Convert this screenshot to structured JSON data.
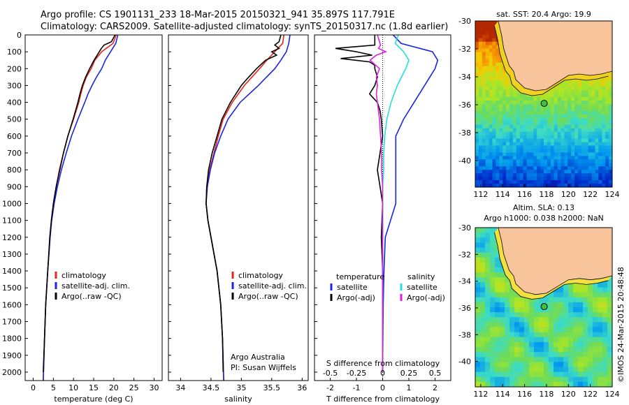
{
  "header": {
    "title_line1": "Argo profile: CS 1901131_233 18-Mar-2015 20150321_941 35.897S 117.791E",
    "title_line2": "Climatology: CARS2009. Satellite-adjusted climatology: synTS_20150317.nc (1.8d earlier)"
  },
  "colors": {
    "climatology": "#e8231a",
    "satellite": "#1a22e8",
    "argo": "#000000",
    "salinity_satellite": "#20e0e0",
    "salinity_argo": "#e020e0",
    "land": "#f7c49b"
  },
  "depth_axis": {
    "min": 0,
    "max": 2050,
    "ticks": [
      "0",
      "100",
      "200",
      "300",
      "400",
      "500",
      "600",
      "700",
      "800",
      "900",
      "1000",
      "1100",
      "1200",
      "1300",
      "1400",
      "1500",
      "1600",
      "1700",
      "1800",
      "1900",
      "2000"
    ]
  },
  "chart_data": [
    {
      "type": "line",
      "name": "temperature-profile",
      "xlabel": "temperature (deg C)",
      "xlim": [
        -2,
        32
      ],
      "ylim": [
        0,
        2050
      ],
      "xticks": [
        "0",
        "5",
        "10",
        "15",
        "20",
        "25",
        "30"
      ],
      "legend": {
        "placement": "lower-left",
        "entries": [
          "climatology",
          "satellite-adj. clim.",
          "Argo(..raw -QC)"
        ]
      },
      "series": [
        {
          "name": "climatology",
          "depth": [
            0,
            50,
            100,
            150,
            200,
            250,
            300,
            350,
            400,
            500,
            600,
            700,
            800,
            900,
            1000,
            1100,
            1200,
            1400,
            1600,
            1800,
            2050
          ],
          "values": [
            20.6,
            19.8,
            17.0,
            15.3,
            14.4,
            13.2,
            12.4,
            11.8,
            11.3,
            10.0,
            8.6,
            7.5,
            6.5,
            5.7,
            5.0,
            4.5,
            4.2,
            3.6,
            3.1,
            2.8,
            2.5
          ]
        },
        {
          "name": "satellite-adj. clim.",
          "depth": [
            0,
            50,
            100,
            150,
            200,
            250,
            300,
            350,
            400,
            500,
            600,
            700,
            800,
            900,
            1000,
            1100,
            1200,
            1400,
            1600,
            1800,
            2050
          ],
          "values": [
            21.0,
            20.5,
            19.2,
            17.9,
            17.0,
            15.7,
            14.6,
            13.6,
            12.8,
            11.1,
            9.5,
            8.2,
            7.0,
            6.0,
            5.2,
            4.6,
            4.2,
            3.6,
            3.1,
            2.8,
            2.5
          ]
        },
        {
          "name": "Argo(..raw -QC)",
          "depth": [
            0,
            40,
            60,
            80,
            100,
            150,
            200,
            250,
            300,
            350,
            400,
            500,
            600,
            700,
            800,
            900,
            1000,
            1100,
            1200,
            1400,
            1600,
            1800,
            2000
          ],
          "values": [
            20.3,
            19.4,
            17.6,
            16.9,
            16.4,
            15.1,
            14.0,
            13.0,
            12.2,
            11.6,
            11.1,
            9.9,
            8.6,
            7.5,
            6.6,
            5.7,
            5.0,
            4.5,
            4.1,
            3.6,
            3.1,
            2.8,
            2.5
          ]
        }
      ]
    },
    {
      "type": "line",
      "name": "salinity-profile",
      "xlabel": "salinity",
      "xlim": [
        33.8,
        36.1
      ],
      "ylim": [
        0,
        2050
      ],
      "xticks": [
        "34",
        "34.5",
        "35",
        "35.5",
        "36"
      ],
      "legend": {
        "placement": "lower-left",
        "entries": [
          "climatology",
          "satellite-adj. clim.",
          "Argo(..raw -QC)"
        ]
      },
      "annotations": [
        "Argo Australia",
        "PI: Susan Wijffels"
      ],
      "series": [
        {
          "name": "climatology",
          "depth": [
            0,
            50,
            100,
            150,
            200,
            300,
            400,
            500,
            600,
            700,
            800,
            900,
            1000,
            1100,
            1200,
            1400,
            1600,
            1800,
            2050
          ],
          "values": [
            35.7,
            35.68,
            35.55,
            35.42,
            35.3,
            35.05,
            34.85,
            34.7,
            34.62,
            34.55,
            34.48,
            34.43,
            34.42,
            34.45,
            34.5,
            34.6,
            34.66,
            34.69,
            34.71
          ]
        },
        {
          "name": "satellite-adj. clim.",
          "depth": [
            0,
            50,
            100,
            150,
            200,
            300,
            400,
            500,
            600,
            700,
            800,
            900,
            1000,
            1100,
            1200,
            1400,
            1600,
            1800,
            2050
          ],
          "values": [
            35.8,
            35.78,
            35.74,
            35.65,
            35.55,
            35.28,
            34.98,
            34.78,
            34.66,
            34.56,
            34.49,
            34.44,
            34.42,
            34.45,
            34.5,
            34.6,
            34.66,
            34.69,
            34.71
          ]
        },
        {
          "name": "Argo(..raw -QC)",
          "depth": [
            0,
            40,
            60,
            80,
            100,
            120,
            150,
            200,
            250,
            300,
            400,
            500,
            600,
            700,
            800,
            900,
            1000,
            1100,
            1200,
            1400,
            1600,
            1800,
            2000
          ],
          "values": [
            35.65,
            35.62,
            35.55,
            35.62,
            35.5,
            35.58,
            35.4,
            35.25,
            35.12,
            35.0,
            34.82,
            34.68,
            34.6,
            34.52,
            34.46,
            34.43,
            34.42,
            34.45,
            34.5,
            34.6,
            34.66,
            34.69,
            34.7
          ]
        }
      ]
    },
    {
      "type": "line",
      "name": "difference-profile",
      "xlabel": "T difference from climatology",
      "xlabel_top": "S difference from climatology",
      "xlim": [
        -2.6,
        2.6
      ],
      "ylim": [
        0,
        2050
      ],
      "xticks": [
        "-2",
        "-1",
        "0",
        "1",
        "2"
      ],
      "xticks_top": [
        "-0.5",
        "-0.25",
        "0",
        "0.25",
        "0.5"
      ],
      "legend": {
        "placement": "lower-center",
        "headers": [
          "temperature",
          "salinity"
        ],
        "entries": [
          "satellite",
          "Argo(-adj)",
          "satellite",
          "Argo(-adj)"
        ]
      },
      "series": [
        {
          "name": "temperature satellite",
          "depth": [
            0,
            50,
            100,
            150,
            200,
            250,
            300,
            400,
            500,
            600,
            700,
            800,
            900,
            1000,
            1100,
            1200,
            1400,
            1600,
            1800,
            2000
          ],
          "values": [
            0.4,
            0.7,
            1.9,
            2.1,
            2.0,
            1.8,
            1.6,
            1.2,
            0.8,
            0.5,
            0.5,
            0.5,
            0.5,
            0.5,
            0.3,
            0.1,
            0.05,
            0.02,
            0.01,
            0
          ]
        },
        {
          "name": "temperature Argo(-adj)",
          "depth": [
            0,
            60,
            80,
            100,
            120,
            140,
            160,
            180,
            200,
            250,
            300,
            350,
            400,
            450,
            500,
            600,
            700,
            800,
            900,
            1000,
            1200,
            1400,
            1600,
            1800,
            2000
          ],
          "values": [
            -0.3,
            -0.3,
            -1.8,
            -1.0,
            -0.4,
            -1.6,
            -0.5,
            -0.3,
            -0.3,
            -0.2,
            -0.3,
            -0.5,
            -0.2,
            -0.1,
            -0.05,
            0,
            -0.1,
            -0.2,
            -0.1,
            0,
            -0.05,
            0,
            0,
            0,
            0
          ]
        },
        {
          "name": "salinity satellite",
          "depth": [
            0,
            50,
            100,
            150,
            200,
            250,
            300,
            400,
            500,
            600,
            700,
            800,
            900,
            1000,
            1200,
            1400,
            1600,
            1800,
            2000
          ],
          "values": [
            0.15,
            0.12,
            0.2,
            0.25,
            0.22,
            0.18,
            0.14,
            0.08,
            0.04,
            0.02,
            0.01,
            0.01,
            0,
            0,
            0,
            0,
            0,
            0,
            0
          ]
        },
        {
          "name": "salinity Argo(-adj)",
          "depth": [
            0,
            60,
            80,
            100,
            120,
            150,
            200,
            250,
            300,
            350,
            400,
            500,
            600,
            700,
            800,
            900,
            1000,
            1200,
            1400,
            1600,
            1800,
            2000
          ],
          "values": [
            -0.05,
            -0.02,
            -0.04,
            0.03,
            -0.06,
            -0.12,
            -0.03,
            -0.06,
            -0.05,
            -0.06,
            -0.05,
            -0.03,
            -0.02,
            -0.01,
            -0.01,
            0,
            0,
            0,
            0,
            0,
            0,
            0
          ]
        }
      ]
    },
    {
      "type": "heatmap",
      "name": "sst-map",
      "title": "sat. SST: 20.4 Argo: 19.9",
      "xlim": [
        111.5,
        124
      ],
      "ylim": [
        -41.9,
        -30
      ],
      "xticks": [
        "112",
        "114",
        "116",
        "118",
        "120",
        "122",
        "124"
      ],
      "yticks": [
        "-30",
        "-32",
        "-34",
        "-36",
        "-38",
        "-40"
      ],
      "marker": {
        "lon": 117.79,
        "lat": -35.9
      }
    },
    {
      "type": "heatmap",
      "name": "sla-map",
      "title": "Altim. SLA: 0.13",
      "subtitle": "Argo h1000: 0.038 h2000: NaN",
      "xlim": [
        111.5,
        124
      ],
      "ylim": [
        -41.9,
        -30
      ],
      "xticks": [
        "112",
        "114",
        "116",
        "118",
        "120",
        "122",
        "124"
      ],
      "yticks": [
        "-30",
        "-32",
        "-34",
        "-36",
        "-38",
        "-40"
      ],
      "marker": {
        "lon": 117.79,
        "lat": -35.9
      }
    }
  ],
  "footer": {
    "credit": "©IMOS 24-Mar-2015 20:48:48"
  }
}
